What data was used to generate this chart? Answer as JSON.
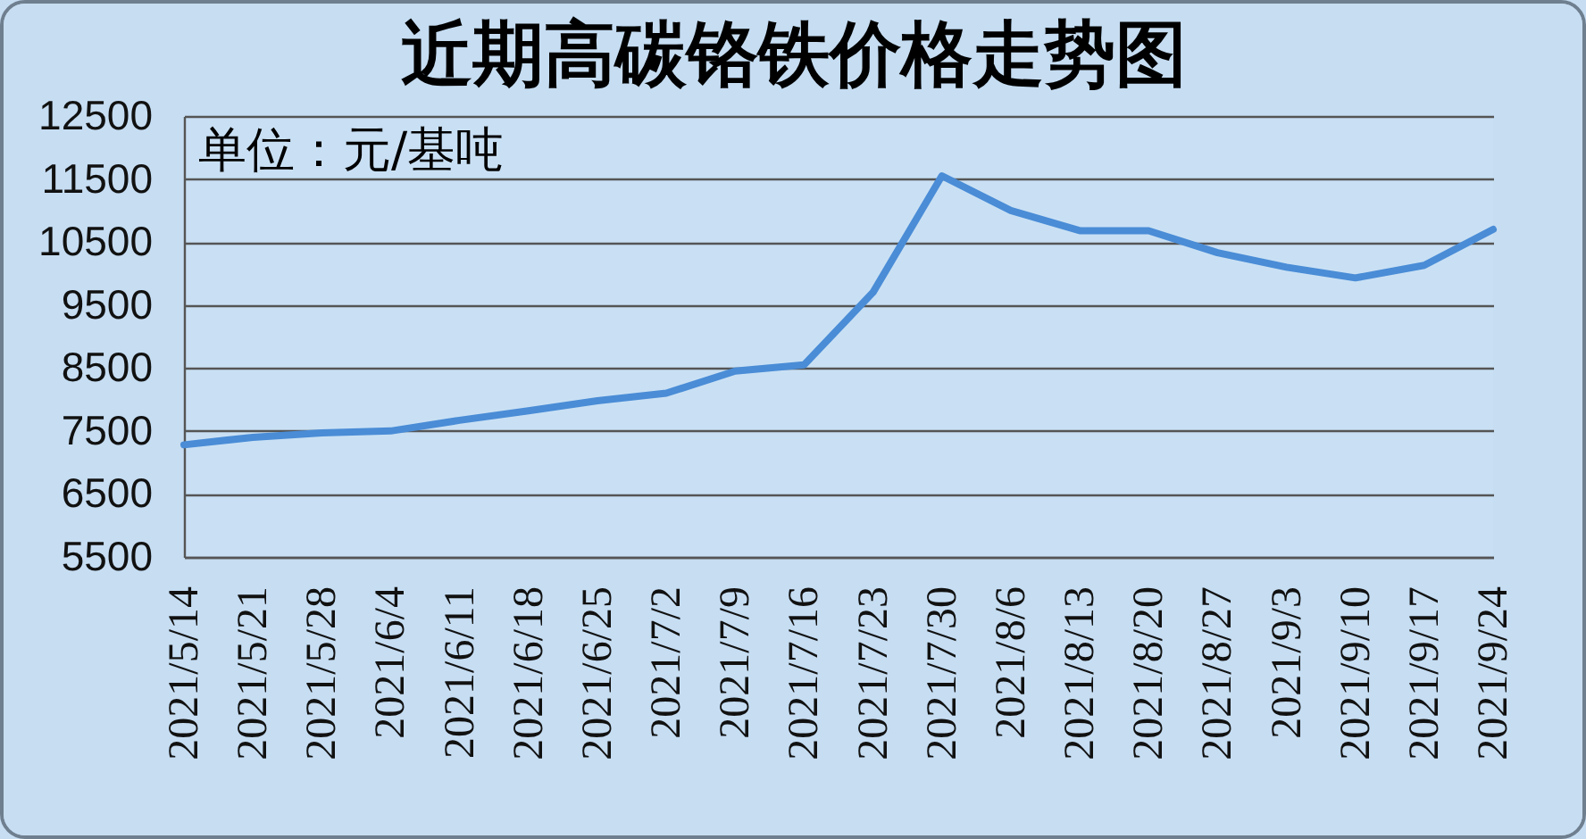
{
  "chart_data": {
    "type": "line",
    "title": "近期高碳铬铁价格走势图",
    "annotations": [
      "单位：元/基吨"
    ],
    "categories": [
      "2021/5/14",
      "2021/5/21",
      "2021/5/28",
      "2021/6/4",
      "2021/6/11",
      "2021/6/18",
      "2021/6/25",
      "2021/7/2",
      "2021/7/9",
      "2021/7/16",
      "2021/7/23",
      "2021/7/30",
      "2021/8/6",
      "2021/8/13",
      "2021/8/20",
      "2021/8/27",
      "2021/9/3",
      "2021/9/10",
      "2021/9/17",
      "2021/9/24"
    ],
    "series": [
      {
        "color": "#4a8cd6",
        "values": [
          7280,
          7400,
          7470,
          7500,
          7670,
          7820,
          7980,
          8100,
          8450,
          8550,
          9700,
          11550,
          11000,
          10680,
          10680,
          10330,
          10100,
          9930,
          10130,
          10700
        ]
      }
    ],
    "ylim": [
      5500,
      12500
    ],
    "yticks": [
      5500,
      6500,
      7500,
      8500,
      9500,
      10500,
      11500,
      12500
    ],
    "grid": "y"
  }
}
